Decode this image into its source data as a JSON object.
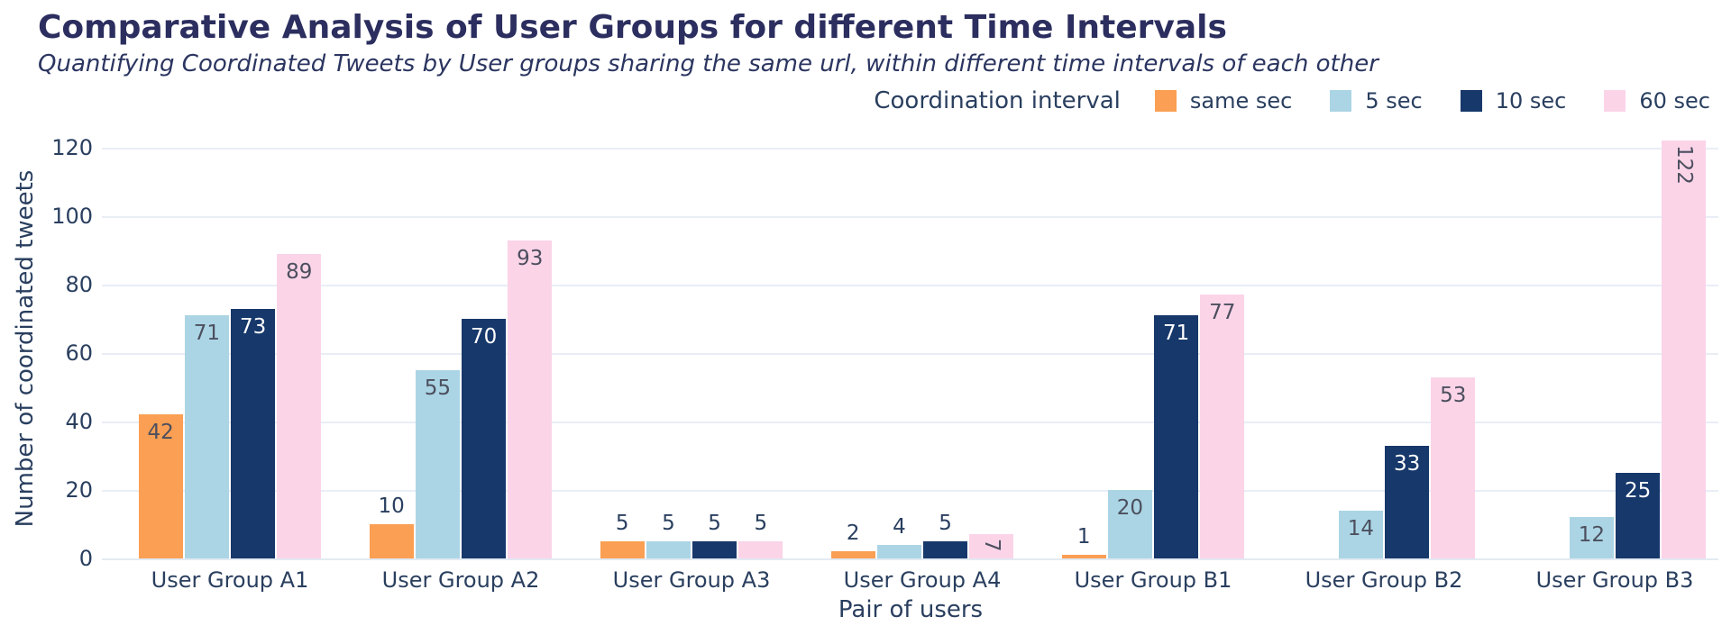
{
  "title": "Comparative Analysis of User Groups for different Time Intervals",
  "subtitle": "Quantifying Coordinated Tweets by User groups sharing the same url, within different time intervals of each other",
  "chart_data": {
    "type": "bar",
    "title": "Comparative Analysis of User Groups for different Time Intervals",
    "subtitle": "Quantifying Coordinated Tweets by User groups sharing the same url, within different time intervals of each other",
    "legend_title": "Coordination interval",
    "legend_position": "top-right",
    "xlabel": "Pair of users",
    "ylabel": "Number of coordinated tweets",
    "categories": [
      "User Group A1",
      "User Group A2",
      "User Group A3",
      "User Group A4",
      "User Group B1",
      "User Group B2",
      "User Group B3"
    ],
    "series": [
      {
        "name": "same sec",
        "color": "#fa9f53",
        "values": [
          42,
          10,
          5,
          2,
          1,
          null,
          null
        ],
        "label_pos": [
          "in",
          "out",
          "out",
          "out",
          "out",
          null,
          null
        ],
        "inside_label_color": "#4c4f5e"
      },
      {
        "name": "5 sec",
        "color": "#abd5e5",
        "values": [
          71,
          55,
          5,
          4,
          20,
          14,
          12
        ],
        "label_pos": [
          "in",
          "in",
          "out",
          "out",
          "in",
          "in",
          "in"
        ],
        "inside_label_color": "#4c4f5e"
      },
      {
        "name": "10 sec",
        "color": "#17386b",
        "values": [
          73,
          70,
          5,
          5,
          71,
          33,
          25
        ],
        "label_pos": [
          "in",
          "in",
          "out",
          "out",
          "in",
          "in",
          "in"
        ],
        "inside_label_color": "#ffffff"
      },
      {
        "name": "60 sec",
        "color": "#fbd4e8",
        "values": [
          89,
          93,
          5,
          7,
          77,
          53,
          122
        ],
        "label_pos": [
          "in",
          "in",
          "out",
          "in-rot",
          "in",
          "in",
          "in-rot"
        ],
        "inside_label_color": "#4c4f5e"
      }
    ],
    "yticks": [
      0,
      20,
      40,
      60,
      80,
      100,
      120
    ],
    "ylim": [
      0,
      125
    ],
    "grid": true,
    "outside_label_color": "#2a3f5f",
    "grid_color": "#e9eef6",
    "text_color": "#2a3f5f",
    "title_color": "#2b2e5e"
  }
}
